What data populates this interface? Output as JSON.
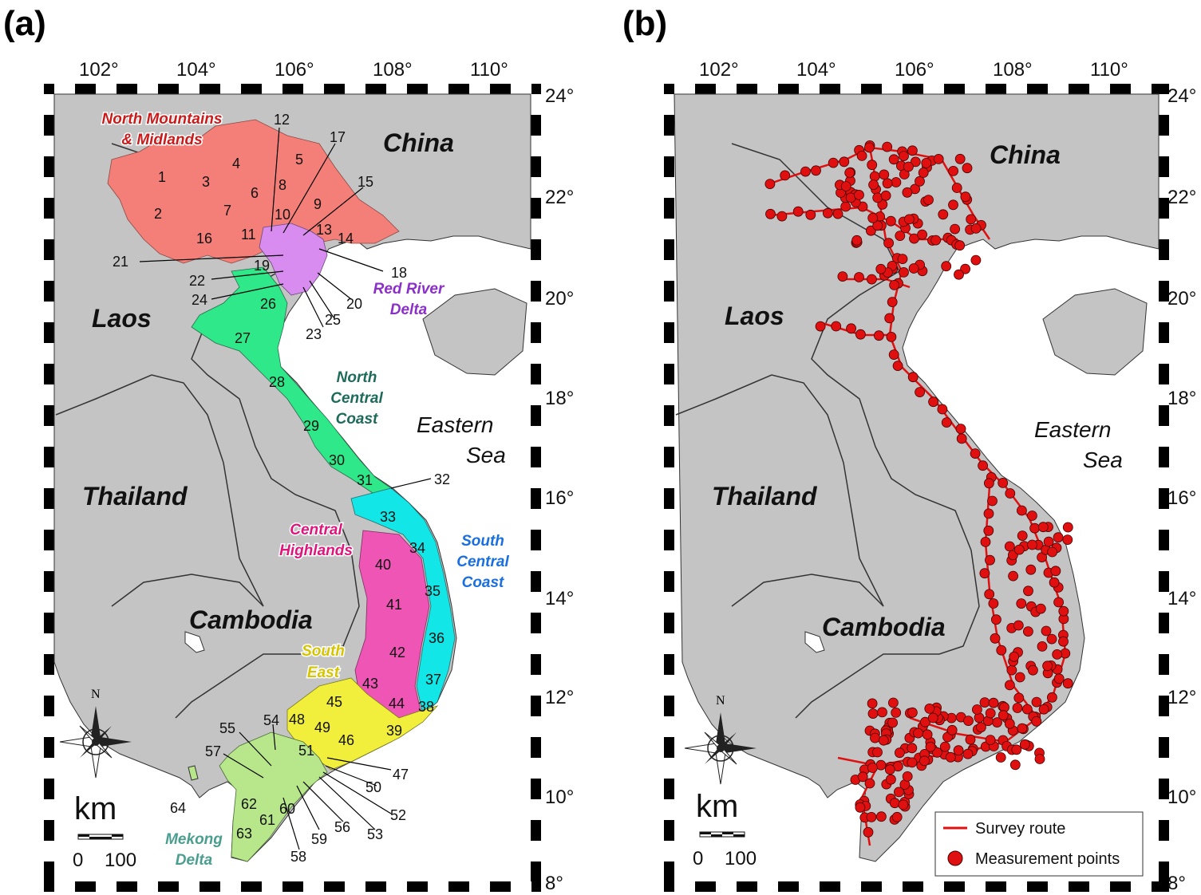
{
  "panels": [
    {
      "id": "a",
      "label": "(a)",
      "lon_ticks": [
        "102°",
        "104°",
        "106°",
        "108°",
        "110°"
      ],
      "lat_ticks": [
        "24°",
        "22°",
        "20°",
        "18°",
        "16°",
        "14°",
        "12°",
        "10°",
        "8°"
      ],
      "countries": [
        "China",
        "Laos",
        "Thailand",
        "Cambodia"
      ],
      "sea": [
        "Eastern",
        "Sea"
      ],
      "regions": [
        {
          "lines": [
            "North Mountains",
            "& Midlands"
          ],
          "color": "#cc1a1a"
        },
        {
          "lines": [
            "Red River",
            "Delta"
          ],
          "color": "#8b2fc9"
        },
        {
          "lines": [
            "North",
            "Central",
            "Coast"
          ],
          "color": "#1d6b5a"
        },
        {
          "lines": [
            "Central",
            "Highlands"
          ],
          "color": "#e0157c"
        },
        {
          "lines": [
            "South",
            "Central",
            "Coast"
          ],
          "color": "#1a6fe0"
        },
        {
          "lines": [
            "South",
            "East"
          ],
          "color": "#d6c400"
        },
        {
          "lines": [
            "Mekong",
            "Delta"
          ],
          "color": "#4a9e8e"
        }
      ],
      "region_fills": {
        "north_mountains": "#f47f78",
        "red_river_delta": "#d88cf0",
        "north_central_coast": "#2ee88a",
        "south_central_coast": "#12e6e6",
        "central_highlands": "#ee55b4",
        "south_east": "#f2ef3c",
        "mekong_delta": "#b8e68a"
      },
      "province_numbers": [
        "1",
        "2",
        "3",
        "4",
        "5",
        "6",
        "7",
        "8",
        "9",
        "10",
        "11",
        "12",
        "13",
        "14",
        "15",
        "16",
        "17",
        "18",
        "19",
        "20",
        "21",
        "22",
        "23",
        "24",
        "25",
        "26",
        "27",
        "28",
        "29",
        "30",
        "31",
        "32",
        "33",
        "34",
        "35",
        "36",
        "37",
        "38",
        "39",
        "40",
        "41",
        "42",
        "43",
        "44",
        "45",
        "46",
        "47",
        "48",
        "49",
        "50",
        "51",
        "52",
        "53",
        "54",
        "55",
        "56",
        "57",
        "58",
        "59",
        "60",
        "61",
        "62",
        "63",
        "64"
      ],
      "scale_unit": "km",
      "scale_values": [
        "0",
        "100"
      ],
      "compass_north": "N"
    },
    {
      "id": "b",
      "label": "(b)",
      "lon_ticks": [
        "102°",
        "104°",
        "106°",
        "108°",
        "110°"
      ],
      "lat_ticks": [
        "24°",
        "22°",
        "20°",
        "18°",
        "16°",
        "14°",
        "12°",
        "10°",
        "8°"
      ],
      "countries": [
        "China",
        "Laos",
        "Thailand",
        "Cambodia"
      ],
      "sea": [
        "Eastern",
        "Sea"
      ],
      "legend": [
        {
          "label": "Survey route",
          "symbol": "line",
          "color": "#e01010"
        },
        {
          "label": "Measurement points",
          "symbol": "circle",
          "color": "#e01010"
        }
      ],
      "scale_unit": "km",
      "scale_values": [
        "0",
        "100"
      ],
      "compass_north": "N"
    }
  ],
  "colors": {
    "land": "#c4c4c4",
    "sea": "#ffffff",
    "border": "#222222",
    "route": "#e01010"
  }
}
